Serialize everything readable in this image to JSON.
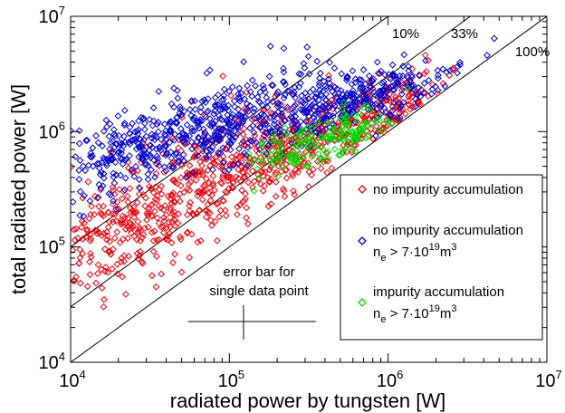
{
  "chart_data": {
    "type": "scatter",
    "xlabel": "radiated power by tungsten [W]",
    "ylabel": "total radiated power [W]",
    "x_scale": "log",
    "y_scale": "log",
    "xlim": [
      10000,
      10000000
    ],
    "ylim": [
      10000,
      10000000
    ],
    "x_ticks": [
      {
        "value": 10000,
        "base": "10",
        "exp": "4"
      },
      {
        "value": 100000,
        "base": "10",
        "exp": "5"
      },
      {
        "value": 1000000,
        "base": "10",
        "exp": "6"
      },
      {
        "value": 10000000,
        "base": "10",
        "exp": "7"
      }
    ],
    "y_ticks": [
      {
        "value": 10000,
        "base": "10",
        "exp": "4"
      },
      {
        "value": 100000,
        "base": "10",
        "exp": "5"
      },
      {
        "value": 1000000,
        "base": "10",
        "exp": "6"
      },
      {
        "value": 10000000,
        "base": "10",
        "exp": "7"
      }
    ],
    "grid": false,
    "legend_position": "bottom-right",
    "reference_lines": [
      {
        "label": "10%",
        "fraction": 0.1
      },
      {
        "label": "33%",
        "fraction": 0.33
      },
      {
        "label": "100%",
        "fraction": 1.0
      }
    ],
    "series": [
      {
        "name": "no impurity accumulation",
        "color": "#e8000b",
        "marker": "diamond",
        "clusters": [
          {
            "x_log": 4.3,
            "y_log": 5.1,
            "sx": 0.3,
            "sy": 0.22,
            "n": 230
          },
          {
            "x_log": 4.9,
            "y_log": 5.65,
            "sx": 0.35,
            "sy": 0.25,
            "n": 330
          },
          {
            "x_log": 5.5,
            "y_log": 5.9,
            "sx": 0.3,
            "sy": 0.18,
            "n": 250
          },
          {
            "x_log": 6.0,
            "y_log": 6.2,
            "sx": 0.18,
            "sy": 0.15,
            "n": 110
          }
        ]
      },
      {
        "name": "no impurity accumulation",
        "name_line2": "n",
        "name_sub": "e",
        "name_rest": " > 7·10",
        "name_sup": "19",
        "name_unit": "m",
        "name_unit_sup": "3",
        "color": "#0000cc",
        "marker": "diamond",
        "clusters": [
          {
            "x_log": 4.4,
            "y_log": 5.85,
            "sx": 0.25,
            "sy": 0.15,
            "n": 220
          },
          {
            "x_log": 5.0,
            "y_log": 6.1,
            "sx": 0.3,
            "sy": 0.18,
            "n": 300
          },
          {
            "x_log": 5.6,
            "y_log": 6.2,
            "sx": 0.25,
            "sy": 0.12,
            "n": 230
          },
          {
            "x_log": 6.1,
            "y_log": 6.35,
            "sx": 0.2,
            "sy": 0.12,
            "n": 90
          }
        ]
      },
      {
        "name": "impurity accumulation",
        "name_line2": "n",
        "name_sub": "e",
        "name_rest": " > 7·10",
        "name_sup": "19",
        "name_unit": "m",
        "name_unit_sup": "3",
        "color": "#00dd00",
        "marker": "diamond",
        "clusters": [
          {
            "x_log": 5.4,
            "y_log": 5.85,
            "sx": 0.15,
            "sy": 0.12,
            "n": 80
          },
          {
            "x_log": 5.75,
            "y_log": 6.0,
            "sx": 0.15,
            "sy": 0.12,
            "n": 90
          }
        ]
      }
    ],
    "annotations": [
      {
        "text": "error bar for",
        "text2": "single data point",
        "x": 140000,
        "y": 25000,
        "x_err": [
          55000,
          350000
        ],
        "y_err": [
          18000,
          35000
        ]
      }
    ]
  }
}
